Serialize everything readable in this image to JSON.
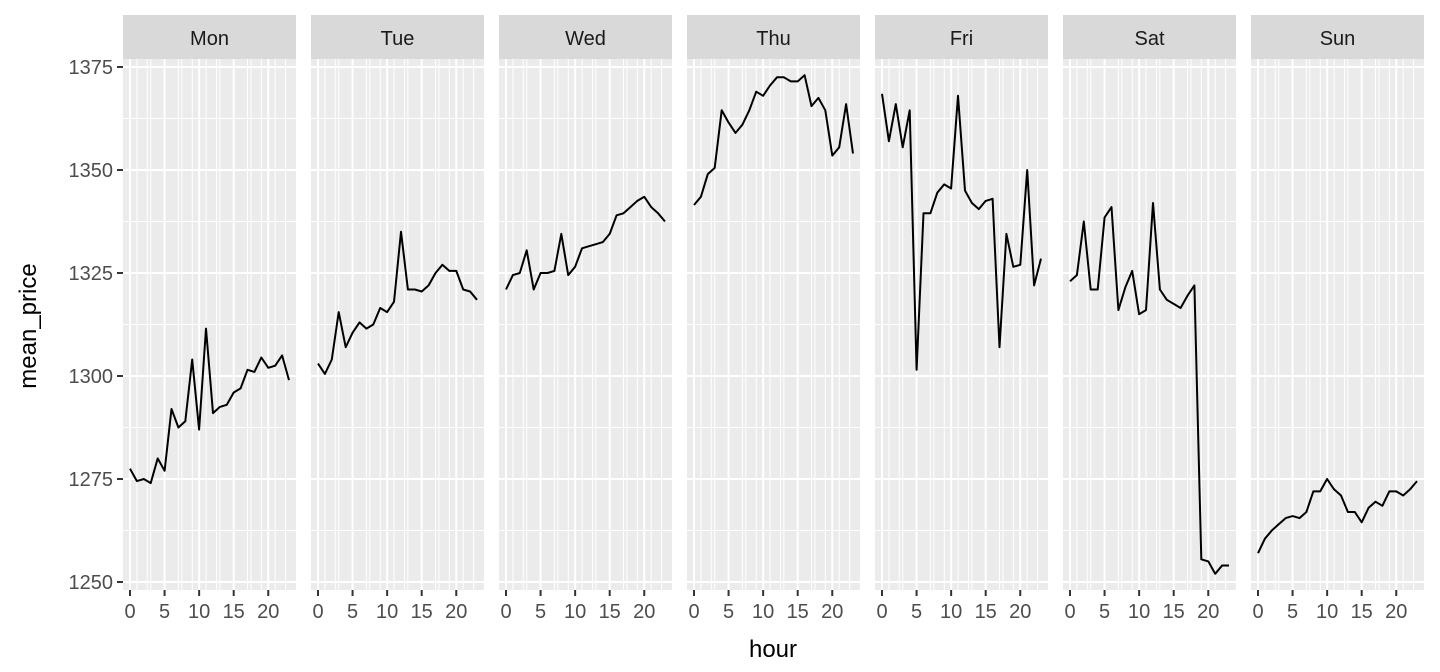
{
  "chart_data": {
    "type": "line",
    "facet_by": "day",
    "facets": [
      "Mon",
      "Tue",
      "Wed",
      "Thu",
      "Fri",
      "Sat",
      "Sun"
    ],
    "xlabel": "hour",
    "ylabel": "mean_price",
    "xlim": [
      0,
      23
    ],
    "ylim": [
      1250,
      1375
    ],
    "x_ticks": [
      0,
      5,
      10,
      15,
      20
    ],
    "y_ticks": [
      1250,
      1275,
      1300,
      1325,
      1350,
      1375
    ],
    "x": [
      0,
      1,
      2,
      3,
      4,
      5,
      6,
      7,
      8,
      9,
      10,
      11,
      12,
      13,
      14,
      15,
      16,
      17,
      18,
      19,
      20,
      21,
      22,
      23
    ],
    "series": [
      {
        "facet": "Mon",
        "values": [
          1277.5,
          1274.5,
          1275,
          1274,
          1280,
          1277,
          1292,
          1287.5,
          1289,
          1304,
          1287,
          1311.5,
          1291,
          1292.5,
          1293,
          1296,
          1297,
          1301.5,
          1301,
          1304.5,
          1302,
          1302.5,
          1305,
          1299
        ]
      },
      {
        "facet": "Tue",
        "values": [
          1303,
          1300.5,
          1304,
          1315.5,
          1307,
          1310.5,
          1313,
          1311.5,
          1312.5,
          1316.5,
          1315.5,
          1318,
          1335,
          1321,
          1321,
          1320.5,
          1322,
          1325,
          1327,
          1325.5,
          1325.5,
          1321,
          1320.5,
          1318.5
        ]
      },
      {
        "facet": "Wed",
        "values": [
          1321,
          1324.5,
          1325,
          1330.5,
          1321,
          1325,
          1325,
          1325.5,
          1334.5,
          1324.5,
          1326.5,
          1331,
          1331.5,
          1332,
          1332.5,
          1334.5,
          1339,
          1339.5,
          1341,
          1342.5,
          1343.5,
          1341,
          1339.5,
          1337.5
        ]
      },
      {
        "facet": "Thu",
        "values": [
          1341.5,
          1343.5,
          1349,
          1350.5,
          1364.5,
          1361.5,
          1359,
          1361,
          1364.5,
          1369,
          1368,
          1370.5,
          1372.5,
          1372.5,
          1371.5,
          1371.5,
          1373,
          1365.5,
          1367.5,
          1364.5,
          1353.5,
          1355.5,
          1366,
          1354
        ]
      },
      {
        "facet": "Fri",
        "values": [
          1368.5,
          1357,
          1366,
          1355.5,
          1364.5,
          1301.5,
          1339.5,
          1339.5,
          1344.5,
          1346.5,
          1345.5,
          1368,
          1345,
          1342,
          1340.5,
          1342.5,
          1343,
          1307,
          1334.5,
          1326.5,
          1327,
          1350,
          1322,
          1328.5
        ]
      },
      {
        "facet": "Sat",
        "values": [
          1323,
          1324.5,
          1337.5,
          1321,
          1321,
          1338.5,
          1341,
          1316,
          1321.5,
          1325.5,
          1315,
          1316,
          1342,
          1321,
          1318.5,
          1317.5,
          1316.5,
          1319.5,
          1322,
          1255.5,
          1255,
          1252,
          1254,
          1254
        ]
      },
      {
        "facet": "Sun",
        "values": [
          1257,
          1260.5,
          1262.5,
          1264,
          1265.5,
          1266,
          1265.5,
          1267,
          1272,
          1272,
          1275,
          1272.5,
          1271,
          1267,
          1267,
          1264.5,
          1268,
          1269.5,
          1268.5,
          1272,
          1272,
          1271,
          1272.5,
          1274.5
        ]
      }
    ],
    "grid": true,
    "legend": "none"
  }
}
